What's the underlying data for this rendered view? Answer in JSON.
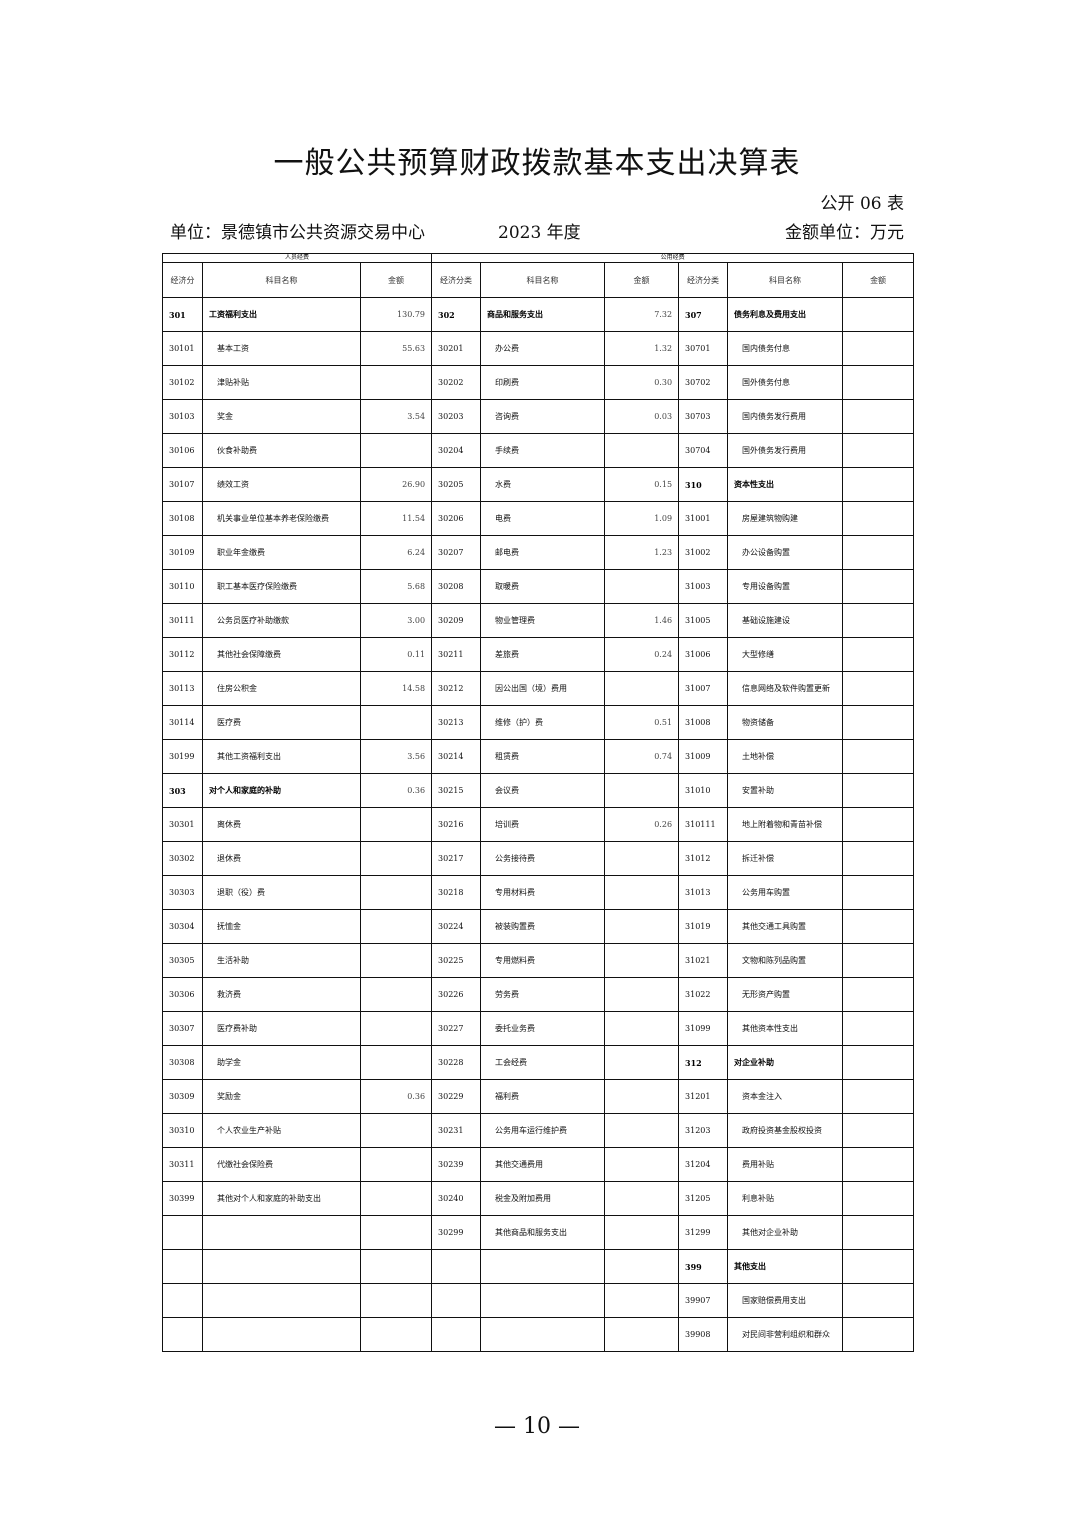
{
  "title": "一般公共预算财政拨款基本支出决算表",
  "table_no": "公开 06 表",
  "unit": "单位：景德镇市公共资源交易中心",
  "year": "2023 年度",
  "money_unit": "金额单位：万元",
  "group_headers": [
    "人员经费",
    "公用经费"
  ],
  "col_headers": [
    "经济分",
    "科目名称",
    "金额",
    "经济分类",
    "科目名称",
    "金额",
    "经济分类",
    "科目名称",
    "金额"
  ],
  "rows": [
    [
      [
        "301",
        "工资福利支出",
        "130.79",
        1
      ],
      [
        "302",
        "商品和服务支出",
        "7.32",
        1
      ],
      [
        "307",
        "债务利息及费用支出",
        "",
        1
      ]
    ],
    [
      [
        "30101",
        "基本工资",
        "55.63"
      ],
      [
        "30201",
        "办公费",
        "1.32"
      ],
      [
        "30701",
        "国内债务付息",
        ""
      ]
    ],
    [
      [
        "30102",
        "津贴补贴",
        ""
      ],
      [
        "30202",
        "印刷费",
        "0.30"
      ],
      [
        "30702",
        "国外债务付息",
        ""
      ]
    ],
    [
      [
        "30103",
        "奖金",
        "3.54"
      ],
      [
        "30203",
        "咨询费",
        "0.03"
      ],
      [
        "30703",
        "国内债务发行费用",
        ""
      ]
    ],
    [
      [
        "30106",
        "伙食补助费",
        ""
      ],
      [
        "30204",
        "手续费",
        ""
      ],
      [
        "30704",
        "国外债务发行费用",
        ""
      ]
    ],
    [
      [
        "30107",
        "绩效工资",
        "26.90"
      ],
      [
        "30205",
        "水费",
        "0.15"
      ],
      [
        "310",
        "资本性支出",
        "",
        1
      ]
    ],
    [
      [
        "30108",
        "机关事业单位基本养老保险缴费",
        "11.54"
      ],
      [
        "30206",
        "电费",
        "1.09"
      ],
      [
        "31001",
        "房屋建筑物购建",
        ""
      ]
    ],
    [
      [
        "30109",
        "职业年金缴费",
        "6.24"
      ],
      [
        "30207",
        "邮电费",
        "1.23"
      ],
      [
        "31002",
        "办公设备购置",
        ""
      ]
    ],
    [
      [
        "30110",
        "职工基本医疗保险缴费",
        "5.68"
      ],
      [
        "30208",
        "取暖费",
        ""
      ],
      [
        "31003",
        "专用设备购置",
        ""
      ]
    ],
    [
      [
        "30111",
        "公务员医疗补助缴款",
        "3.00"
      ],
      [
        "30209",
        "物业管理费",
        "1.46"
      ],
      [
        "31005",
        "基础设施建设",
        ""
      ]
    ],
    [
      [
        "30112",
        "其他社会保障缴费",
        "0.11"
      ],
      [
        "30211",
        "差旅费",
        "0.24"
      ],
      [
        "31006",
        "大型修缮",
        ""
      ]
    ],
    [
      [
        "30113",
        "住房公积金",
        "14.58"
      ],
      [
        "30212",
        "因公出国（境）费用",
        ""
      ],
      [
        "31007",
        "信息网络及软件购置更新",
        ""
      ]
    ],
    [
      [
        "30114",
        "医疗费",
        ""
      ],
      [
        "30213",
        "维修（护）费",
        "0.51"
      ],
      [
        "31008",
        "物资储备",
        ""
      ]
    ],
    [
      [
        "30199",
        "其他工资福利支出",
        "3.56"
      ],
      [
        "30214",
        "租赁费",
        "0.74"
      ],
      [
        "31009",
        "土地补偿",
        ""
      ]
    ],
    [
      [
        "303",
        "对个人和家庭的补助",
        "0.36",
        1
      ],
      [
        "30215",
        "会议费",
        ""
      ],
      [
        "31010",
        "安置补助",
        ""
      ]
    ],
    [
      [
        "30301",
        "离休费",
        ""
      ],
      [
        "30216",
        "培训费",
        "0.26"
      ],
      [
        "310111",
        "地上附着物和青苗补偿",
        ""
      ]
    ],
    [
      [
        "30302",
        "退休费",
        ""
      ],
      [
        "30217",
        "公务接待费",
        ""
      ],
      [
        "31012",
        "拆迁补偿",
        ""
      ]
    ],
    [
      [
        "30303",
        "退职（役）费",
        ""
      ],
      [
        "30218",
        "专用材料费",
        ""
      ],
      [
        "31013",
        "公务用车购置",
        ""
      ]
    ],
    [
      [
        "30304",
        "抚恤金",
        ""
      ],
      [
        "30224",
        "被装购置费",
        ""
      ],
      [
        "31019",
        "其他交通工具购置",
        ""
      ]
    ],
    [
      [
        "30305",
        "生活补助",
        ""
      ],
      [
        "30225",
        "专用燃料费",
        ""
      ],
      [
        "31021",
        "文物和陈列品购置",
        ""
      ]
    ],
    [
      [
        "30306",
        "救济费",
        ""
      ],
      [
        "30226",
        "劳务费",
        ""
      ],
      [
        "31022",
        "无形资产购置",
        ""
      ]
    ],
    [
      [
        "30307",
        "医疗费补助",
        ""
      ],
      [
        "30227",
        "委托业务费",
        ""
      ],
      [
        "31099",
        "其他资本性支出",
        ""
      ]
    ],
    [
      [
        "30308",
        "助学金",
        ""
      ],
      [
        "30228",
        "工会经费",
        ""
      ],
      [
        "312",
        "对企业补助",
        "",
        1
      ]
    ],
    [
      [
        "30309",
        "奖励金",
        "0.36"
      ],
      [
        "30229",
        "福利费",
        ""
      ],
      [
        "31201",
        "资本金注入",
        ""
      ]
    ],
    [
      [
        "30310",
        "个人农业生产补贴",
        ""
      ],
      [
        "30231",
        "公务用车运行维护费",
        ""
      ],
      [
        "31203",
        "政府投资基金股权投资",
        ""
      ]
    ],
    [
      [
        "30311",
        "代缴社会保险费",
        ""
      ],
      [
        "30239",
        "其他交通费用",
        ""
      ],
      [
        "31204",
        "费用补贴",
        ""
      ]
    ],
    [
      [
        "30399",
        "其他对个人和家庭的补助支出",
        ""
      ],
      [
        "30240",
        "税金及附加费用",
        ""
      ],
      [
        "31205",
        "利息补贴",
        ""
      ]
    ],
    [
      [
        "",
        "",
        ""
      ],
      [
        "30299",
        "其他商品和服务支出",
        ""
      ],
      [
        "31299",
        "其他对企业补助",
        ""
      ]
    ],
    [
      [
        "",
        "",
        ""
      ],
      [
        "",
        "",
        ""
      ],
      [
        "399",
        "其他支出",
        "",
        1
      ]
    ],
    [
      [
        "",
        "",
        ""
      ],
      [
        "",
        "",
        ""
      ],
      [
        "39907",
        "国家赔偿费用支出",
        ""
      ]
    ],
    [
      [
        "",
        "",
        ""
      ],
      [
        "",
        "",
        ""
      ],
      [
        "39908",
        "对民间非营利组织和群众",
        ""
      ]
    ]
  ],
  "page_number": "— 10 —"
}
